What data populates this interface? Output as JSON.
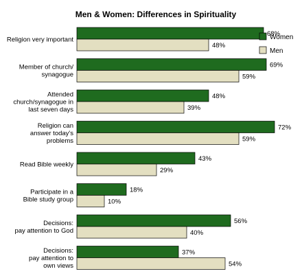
{
  "chart_data": {
    "type": "bar",
    "orientation": "horizontal",
    "title": "Men & Women: Differences in Spirituality",
    "categories": [
      [
        "Religion very important"
      ],
      [
        "Member of church/",
        "synagogue"
      ],
      [
        "Attended",
        "church/synagogue in",
        "last seven days"
      ],
      [
        "Religion can",
        "answer today's",
        "problems"
      ],
      [
        "Read Bible weekly"
      ],
      [
        "Participate in a",
        "Bible study group"
      ],
      [
        "Decisions:",
        "pay attention to God"
      ],
      [
        "Decisions:",
        "pay attention to",
        "own views"
      ]
    ],
    "series": [
      {
        "name": "Women",
        "color": "#1f6b1f",
        "values": [
          68,
          69,
          48,
          72,
          43,
          18,
          56,
          37
        ],
        "labels": [
          "68%",
          "69%",
          "48%",
          "72%",
          "43%",
          "18%",
          "56%",
          "37%"
        ]
      },
      {
        "name": "Men",
        "color": "#e3dfc1",
        "values": [
          48,
          59,
          39,
          59,
          29,
          10,
          40,
          54
        ],
        "labels": [
          "48%",
          "59%",
          "39%",
          "59%",
          "29%",
          "10%",
          "40%",
          "54%"
        ]
      }
    ],
    "xlim": [
      0,
      80
    ],
    "grid": false,
    "legend_position": "top-right"
  }
}
